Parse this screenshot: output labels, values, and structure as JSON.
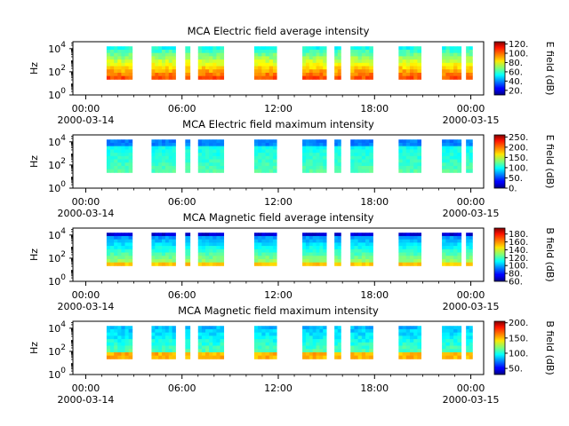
{
  "chart_data": [
    {
      "type": "heatmap",
      "title": "MCA  Electric field average intensity",
      "ylabel": "Hz",
      "y_scale": "log",
      "y_ticks": [
        "10^0",
        "10^2",
        "10^4"
      ],
      "x_ticks": [
        "00:00",
        "06:00",
        "12:00",
        "18:00",
        "00:00"
      ],
      "x_start_date": "2000-03-14",
      "x_end_date": "2000-03-15",
      "colorbar_label": "E field (dB)",
      "colorbar_range": [
        10,
        125
      ],
      "colorbar_ticks": [
        "20.",
        "40.",
        "60.",
        "80.",
        "100.",
        "120."
      ],
      "colorscale": "jet",
      "data_intervals_hours": [
        [
          1.3,
          2.9
        ],
        [
          4.1,
          5.6
        ],
        [
          6.2,
          6.5
        ],
        [
          7.0,
          8.6
        ],
        [
          10.5,
          11.9
        ],
        [
          13.5,
          15.0
        ],
        [
          15.5,
          15.9
        ],
        [
          16.5,
          17.9
        ],
        [
          19.5,
          20.9
        ],
        [
          22.2,
          23.4
        ],
        [
          23.7,
          24.1
        ]
      ],
      "intensity_profile": "high at low frequency (≈100 dB), decreasing to ≈55 dB at high frequency"
    },
    {
      "type": "heatmap",
      "title": "MCA  Electric field maximum intensity",
      "ylabel": "Hz",
      "y_scale": "log",
      "y_ticks": [
        "10^0",
        "10^2",
        "10^4"
      ],
      "x_ticks": [
        "00:00",
        "06:00",
        "12:00",
        "18:00",
        "00:00"
      ],
      "x_start_date": "2000-03-14",
      "x_end_date": "2000-03-15",
      "colorbar_label": "E field (dB)",
      "colorbar_range": [
        0,
        260
      ],
      "colorbar_ticks": [
        "0.",
        "50.",
        "100.",
        "150.",
        "200.",
        "250."
      ],
      "colorscale": "jet",
      "data_intervals_hours": [
        [
          1.3,
          2.9
        ],
        [
          4.1,
          5.6
        ],
        [
          6.2,
          6.5
        ],
        [
          7.0,
          8.6
        ],
        [
          10.5,
          11.9
        ],
        [
          13.5,
          15.0
        ],
        [
          15.5,
          15.9
        ],
        [
          16.5,
          17.9
        ],
        [
          19.5,
          20.9
        ],
        [
          22.2,
          23.4
        ],
        [
          23.7,
          24.1
        ]
      ],
      "intensity_profile": "mostly ≈110–130 dB, lower (≈80 dB) at high frequency"
    },
    {
      "type": "heatmap",
      "title": "MCA  Magnetic field average intensity",
      "ylabel": "Hz",
      "y_scale": "log",
      "y_ticks": [
        "10^0",
        "10^2",
        "10^4"
      ],
      "x_ticks": [
        "00:00",
        "06:00",
        "12:00",
        "18:00",
        "00:00"
      ],
      "x_start_date": "2000-03-14",
      "x_end_date": "2000-03-15",
      "colorbar_label": "B field (dB)",
      "colorbar_range": [
        60,
        195
      ],
      "colorbar_ticks": [
        "60.",
        "80.",
        "100.",
        "120.",
        "140.",
        "160.",
        "180."
      ],
      "colorscale": "jet",
      "data_intervals_hours": [
        [
          1.3,
          2.9
        ],
        [
          4.1,
          5.6
        ],
        [
          6.2,
          6.5
        ],
        [
          7.0,
          8.6
        ],
        [
          10.5,
          11.9
        ],
        [
          13.5,
          15.0
        ],
        [
          15.5,
          15.9
        ],
        [
          16.5,
          17.9
        ],
        [
          19.5,
          20.9
        ],
        [
          22.2,
          23.4
        ],
        [
          23.7,
          24.1
        ]
      ],
      "intensity_profile": "high at low frequency (≈150 dB), low (≈70 dB) at high frequency"
    },
    {
      "type": "heatmap",
      "title": "MCA  Magnetic field maximum intensity",
      "ylabel": "Hz",
      "y_scale": "log",
      "y_ticks": [
        "10^0",
        "10^2",
        "10^4"
      ],
      "x_ticks": [
        "00:00",
        "06:00",
        "12:00",
        "18:00",
        "00:00"
      ],
      "x_start_date": "2000-03-14",
      "x_end_date": "2000-03-15",
      "colorbar_label": "B field (dB)",
      "colorbar_range": [
        30,
        205
      ],
      "colorbar_ticks": [
        "50.",
        "100.",
        "150.",
        "200."
      ],
      "colorscale": "jet",
      "data_intervals_hours": [
        [
          1.3,
          2.9
        ],
        [
          4.1,
          5.6
        ],
        [
          6.2,
          6.5
        ],
        [
          7.0,
          8.6
        ],
        [
          10.5,
          11.9
        ],
        [
          13.5,
          15.0
        ],
        [
          15.5,
          15.9
        ],
        [
          16.5,
          17.9
        ],
        [
          19.5,
          20.9
        ],
        [
          22.2,
          23.4
        ],
        [
          23.7,
          24.1
        ]
      ],
      "intensity_profile": "≈150 dB at low frequency, ≈110 dB at high frequency"
    }
  ]
}
